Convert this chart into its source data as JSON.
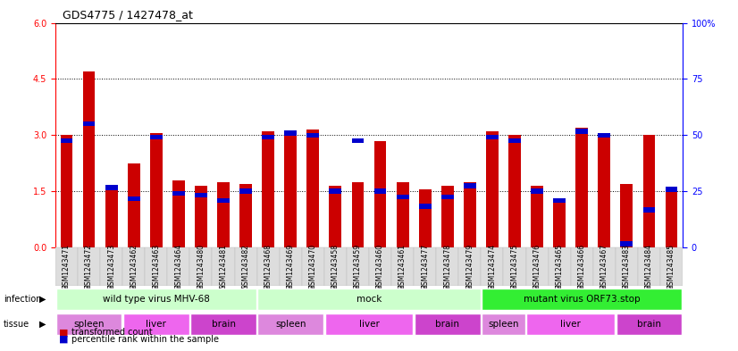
{
  "title": "GDS4775 / 1427478_at",
  "samples": [
    "GSM1243471",
    "GSM1243472",
    "GSM1243473",
    "GSM1243462",
    "GSM1243463",
    "GSM1243464",
    "GSM1243480",
    "GSM1243481",
    "GSM1243482",
    "GSM1243468",
    "GSM1243469",
    "GSM1243470",
    "GSM1243458",
    "GSM1243459",
    "GSM1243460",
    "GSM1243461",
    "GSM1243477",
    "GSM1243478",
    "GSM1243479",
    "GSM1243474",
    "GSM1243475",
    "GSM1243476",
    "GSM1243465",
    "GSM1243466",
    "GSM1243467",
    "GSM1243483",
    "GSM1243484",
    "GSM1243485"
  ],
  "transformed_count": [
    3.0,
    4.7,
    1.6,
    2.25,
    3.05,
    1.8,
    1.65,
    1.75,
    1.7,
    3.1,
    3.1,
    3.15,
    1.65,
    1.75,
    2.85,
    1.75,
    1.55,
    1.65,
    1.75,
    3.1,
    3.0,
    1.65,
    1.3,
    3.2,
    3.05,
    1.7,
    3.0,
    1.6
  ],
  "percentile_rank_value": [
    2.85,
    3.3,
    1.6,
    1.3,
    2.95,
    1.45,
    1.4,
    1.25,
    1.5,
    2.95,
    3.05,
    3.0,
    1.5,
    2.85,
    1.5,
    1.35,
    1.1,
    1.35,
    1.65,
    2.95,
    2.85,
    1.5,
    1.25,
    3.1,
    3.0,
    0.1,
    1.0,
    1.55
  ],
  "infection_groups": [
    {
      "label": "wild type virus MHV-68",
      "start": 0,
      "end": 9,
      "color": "#CCFFCC"
    },
    {
      "label": "mock",
      "start": 9,
      "end": 19,
      "color": "#CCFFCC"
    },
    {
      "label": "mutant virus ORF73.stop",
      "start": 19,
      "end": 28,
      "color": "#33EE33"
    }
  ],
  "tissue_groups": [
    {
      "label": "spleen",
      "start": 0,
      "end": 3
    },
    {
      "label": "liver",
      "start": 3,
      "end": 6
    },
    {
      "label": "brain",
      "start": 6,
      "end": 9
    },
    {
      "label": "spleen",
      "start": 9,
      "end": 12
    },
    {
      "label": "liver",
      "start": 12,
      "end": 16
    },
    {
      "label": "brain",
      "start": 16,
      "end": 19
    },
    {
      "label": "spleen",
      "start": 19,
      "end": 21
    },
    {
      "label": "liver",
      "start": 21,
      "end": 25
    },
    {
      "label": "brain",
      "start": 25,
      "end": 28
    }
  ],
  "tissue_colors": {
    "spleen": "#DD88DD",
    "liver": "#EE66EE",
    "brain": "#CC44CC"
  },
  "ylim_left": [
    0,
    6
  ],
  "ylim_right": [
    0,
    100
  ],
  "yticks_left": [
    0,
    1.5,
    3.0,
    4.5,
    6.0
  ],
  "yticks_right": [
    0,
    25,
    50,
    75,
    100
  ],
  "bar_color": "#CC0000",
  "blue_color": "#0000CC",
  "background_color": "#ffffff",
  "grey_bg": "#E8E8E8"
}
